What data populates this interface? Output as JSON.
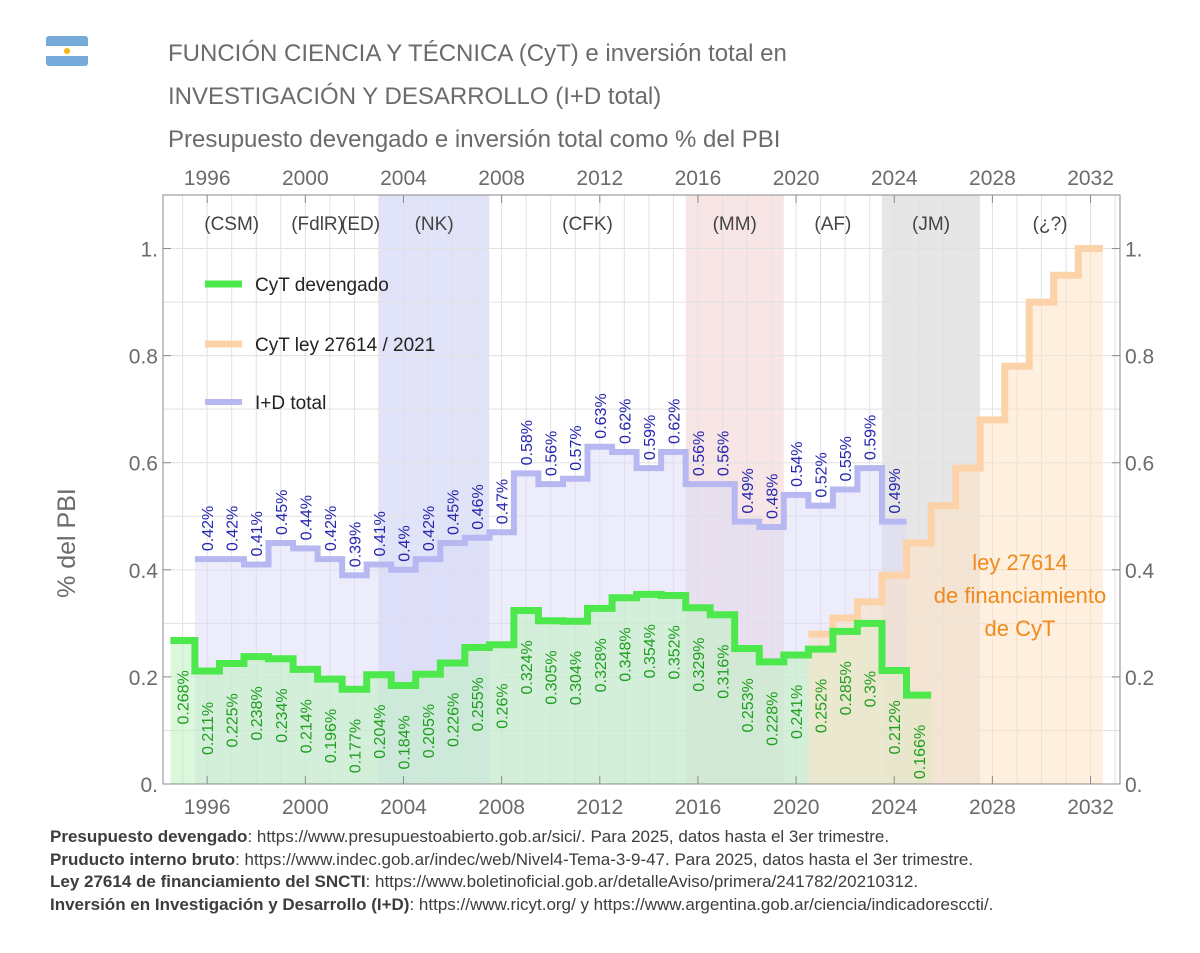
{
  "title_line1": "FUNCIÓN CIENCIA Y TÉCNICA (CyT) e inversión total en",
  "title_line2": "INVESTIGACIÓN Y DESARROLLO (I+D total)",
  "subtitle": "Presupuesto devengado e inversión total como % del PBI",
  "flag_icon": "argentina-flag-icon",
  "sources": [
    {
      "label": "Presupuesto devengado",
      "text": ": https://www.presupuestoabierto.gob.ar/sici/. Para 2025, datos hasta el 3er trimestre."
    },
    {
      "label": "Pruducto interno bruto",
      "text": ": https://www.indec.gob.ar/indec/web/Nivel4-Tema-3-9-47. Para 2025, datos hasta el 3er trimestre."
    },
    {
      "label": "Ley 27614 de financiamiento del SNCTI",
      "text": ": https://www.boletinoficial.gob.ar/detalleAviso/primera/241782/20210312."
    },
    {
      "label": "Inversión en Investigación y Desarrollo (I+D)",
      "text": ": https://www.ricyt.org/ y https://www.argentina.gob.ar/ciencia/indicadoresccti/."
    }
  ],
  "chart_data": {
    "type": "line",
    "ylabel": "% del PBI",
    "xlim": [
      1994.2,
      2033.2
    ],
    "ylim": [
      0,
      1.1
    ],
    "x_ticks": [
      1996,
      2000,
      2004,
      2008,
      2012,
      2016,
      2020,
      2024,
      2028,
      2032
    ],
    "y_ticks": [
      0,
      0.2,
      0.4,
      0.6,
      0.8,
      1.0
    ],
    "y_tick_labels": [
      "0.",
      "0.2",
      "0.4",
      "0.6",
      "0.8",
      "1."
    ],
    "grid": true,
    "legend_position": "top-left",
    "periods": [
      {
        "label": "(CSM)",
        "start": 1994.5,
        "end": 1999.5,
        "color": "#ffffff"
      },
      {
        "label": "(FdlR)",
        "start": 1999.5,
        "end": 2001.5,
        "color": "#ffffff"
      },
      {
        "label": "(ED)",
        "start": 2001.5,
        "end": 2003.0,
        "color": "#ffffff"
      },
      {
        "label": "(NK)",
        "start": 2003.0,
        "end": 2007.5,
        "color": "#d7d9f6"
      },
      {
        "label": "(CFK)",
        "start": 2007.5,
        "end": 2015.5,
        "color": "#ffffff"
      },
      {
        "label": "(MM)",
        "start": 2015.5,
        "end": 2019.5,
        "color": "#f6dede"
      },
      {
        "label": "(AF)",
        "start": 2019.5,
        "end": 2023.5,
        "color": "#ffffff"
      },
      {
        "label": "(JM)",
        "start": 2023.5,
        "end": 2027.5,
        "color": "#dedede"
      },
      {
        "label": "(¿?)",
        "start": 2027.5,
        "end": 2033.2,
        "color": "#ffffff"
      }
    ],
    "annotation": [
      "ley 27614",
      "de financiamiento",
      "de CyT"
    ],
    "series": [
      {
        "name": "CyT devengado",
        "color": "#4ce84c",
        "label_color": "#1f9e1f",
        "years": [
          1995,
          1996,
          1997,
          1998,
          1999,
          2000,
          2001,
          2002,
          2003,
          2004,
          2005,
          2006,
          2007,
          2008,
          2009,
          2010,
          2011,
          2012,
          2013,
          2014,
          2015,
          2016,
          2017,
          2018,
          2019,
          2020,
          2021,
          2022,
          2023,
          2024,
          2025
        ],
        "values": [
          0.268,
          0.211,
          0.225,
          0.238,
          0.234,
          0.214,
          0.196,
          0.177,
          0.204,
          0.184,
          0.205,
          0.226,
          0.255,
          0.26,
          0.324,
          0.305,
          0.304,
          0.328,
          0.348,
          0.354,
          0.352,
          0.329,
          0.316,
          0.253,
          0.228,
          0.241,
          0.252,
          0.285,
          0.3,
          0.212,
          0.166
        ],
        "labels": [
          "0.268%",
          "0.211%",
          "0.225%",
          "0.238%",
          "0.234%",
          "0.214%",
          "0.196%",
          "0.177%",
          "0.204%",
          "0.184%",
          "0.205%",
          "0.226%",
          "0.255%",
          "0.26%",
          "0.324%",
          "0.305%",
          "0.304%",
          "0.328%",
          "0.348%",
          "0.354%",
          "0.352%",
          "0.329%",
          "0.316%",
          "0.253%",
          "0.228%",
          "0.241%",
          "0.252%",
          "0.285%",
          "0.3%",
          "0.212%",
          "0.166%"
        ]
      },
      {
        "name": "CyT ley 27614 / 2021",
        "color": "#fcd2a8",
        "years": [
          2021,
          2022,
          2023,
          2024,
          2025,
          2026,
          2027,
          2028,
          2029,
          2030,
          2031,
          2032
        ],
        "values": [
          0.28,
          0.31,
          0.34,
          0.39,
          0.45,
          0.52,
          0.59,
          0.68,
          0.78,
          0.9,
          0.95,
          1.0
        ]
      },
      {
        "name": "I+D total",
        "color": "#b7b8f2",
        "label_color": "#2626b0",
        "years": [
          1996,
          1997,
          1998,
          1999,
          2000,
          2001,
          2002,
          2003,
          2004,
          2005,
          2006,
          2007,
          2008,
          2009,
          2010,
          2011,
          2012,
          2013,
          2014,
          2015,
          2016,
          2017,
          2018,
          2019,
          2020,
          2021,
          2022,
          2023,
          2024
        ],
        "values": [
          0.42,
          0.42,
          0.41,
          0.45,
          0.44,
          0.42,
          0.39,
          0.41,
          0.4,
          0.42,
          0.45,
          0.46,
          0.47,
          0.58,
          0.56,
          0.57,
          0.63,
          0.62,
          0.59,
          0.62,
          0.56,
          0.56,
          0.49,
          0.48,
          0.54,
          0.52,
          0.55,
          0.59,
          0.49
        ],
        "labels": [
          "0.42%",
          "0.42%",
          "0.41%",
          "0.45%",
          "0.44%",
          "0.42%",
          "0.39%",
          "0.41%",
          "0.4%",
          "0.42%",
          "0.45%",
          "0.46%",
          "0.47%",
          "0.58%",
          "0.56%",
          "0.57%",
          "0.63%",
          "0.62%",
          "0.59%",
          "0.62%",
          "0.56%",
          "0.56%",
          "0.49%",
          "0.48%",
          "0.54%",
          "0.52%",
          "0.55%",
          "0.59%",
          "0.49%"
        ]
      }
    ]
  }
}
